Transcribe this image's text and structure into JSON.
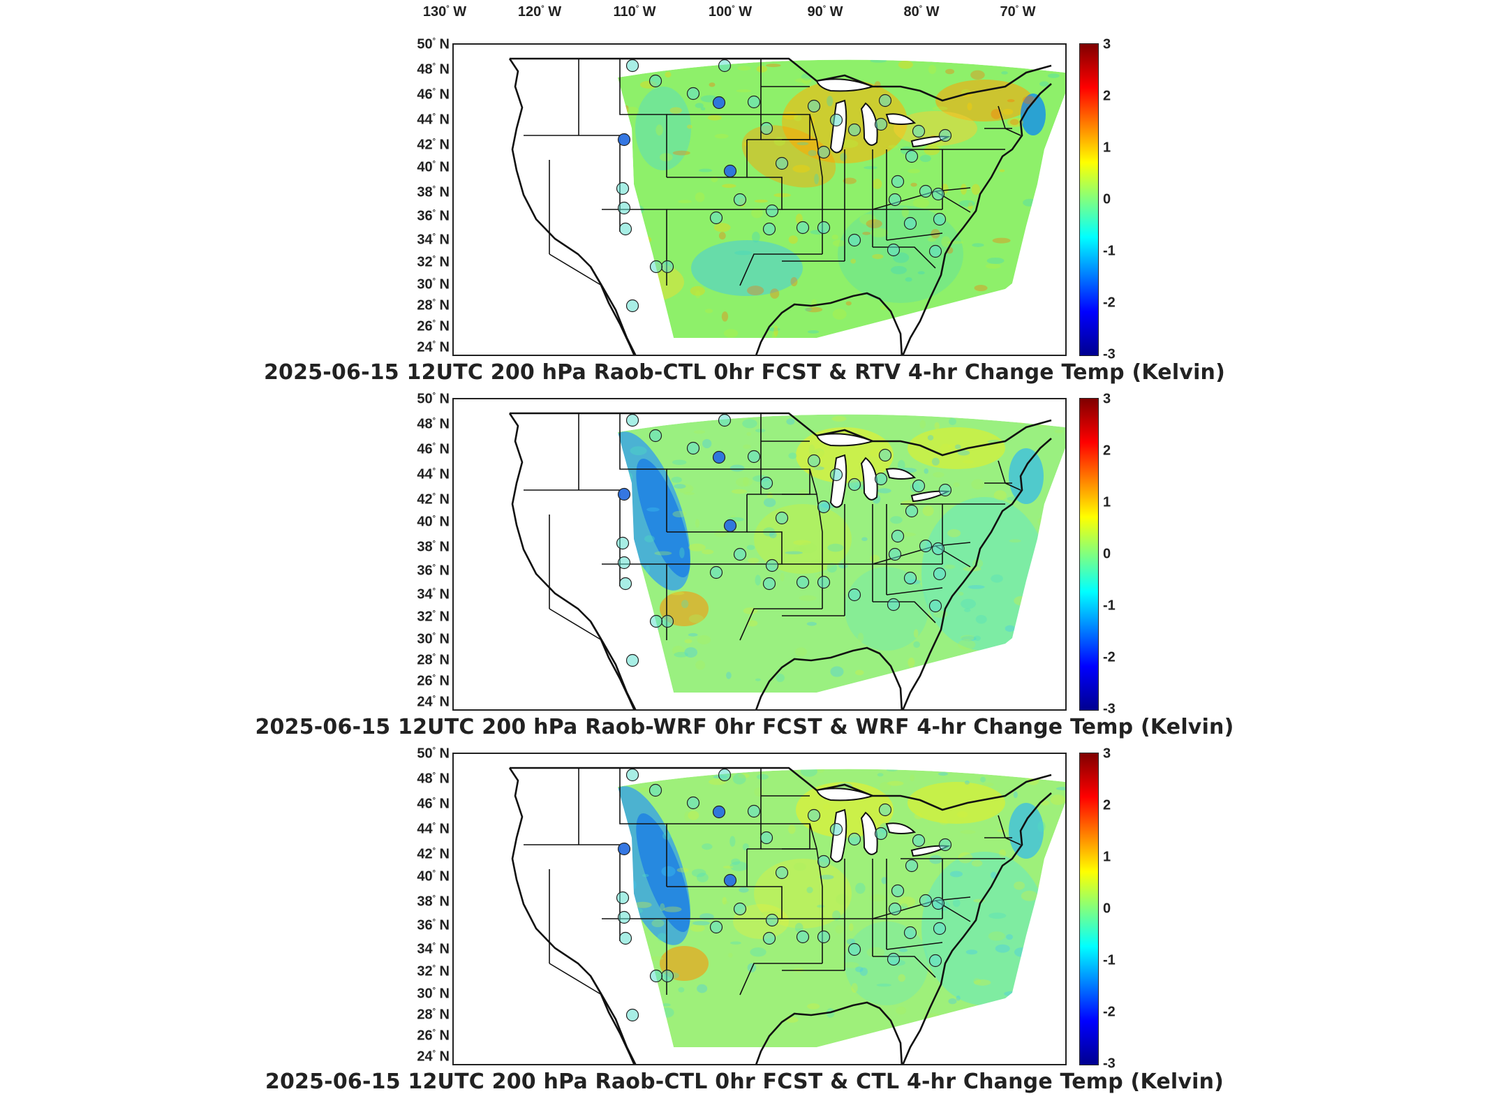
{
  "longitude_labels": [
    "130° W",
    "120° W",
    "110° W",
    "100° W",
    "90° W",
    "80° W",
    "70° W"
  ],
  "latitude_labels": [
    "50° N",
    "48° N",
    "46° N",
    "44° N",
    "42° N",
    "40° N",
    "38° N",
    "36° N",
    "34° N",
    "32° N",
    "30° N",
    "28° N",
    "26° N",
    "24° N"
  ],
  "colorbar": {
    "ticks": [
      "3",
      "2",
      "1",
      "0",
      "-1",
      "-2",
      "-3"
    ],
    "colors": [
      "#7f0000",
      "#ff0000",
      "#ff8000",
      "#ffff00",
      "#80ff80",
      "#00ffff",
      "#0080ff",
      "#0000ff",
      "#00008f"
    ]
  },
  "panels": [
    {
      "title": "2025-06-15 12UTC 200 hPa Raob-CTL 0hr FCST & RTV 4-hr Change Temp (Kelvin)",
      "field": "rtv"
    },
    {
      "title": "2025-06-15 12UTC 200 hPa Raob-WRF 0hr FCST & WRF 4-hr Change Temp (Kelvin)",
      "field": "wrf"
    },
    {
      "title": "2025-06-15 12UTC 200 hPa Raob-CTL 0hr FCST & CTL 4-hr Change Temp (Kelvin)",
      "field": "ctl"
    }
  ],
  "colors": {
    "map_outline": "#111111",
    "frame": "#222222",
    "background": "#ffffff"
  }
}
